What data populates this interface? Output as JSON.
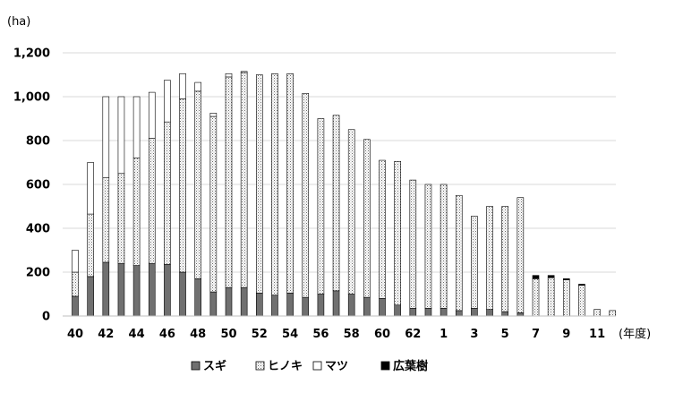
{
  "chart_data": {
    "type": "bar",
    "stacked": true,
    "y_unit": "(ha)",
    "x_unit": "(年度)",
    "ylim": [
      0,
      1200
    ],
    "y_ticks": [
      "0",
      "200",
      "400",
      "600",
      "800",
      "1,000",
      "1,200"
    ],
    "grid": "horizontal",
    "legend_position": "bottom",
    "categories": [
      "40",
      "41",
      "42",
      "43",
      "44",
      "45",
      "46",
      "47",
      "48",
      "49",
      "50",
      "51",
      "52",
      "53",
      "54",
      "55",
      "56",
      "57",
      "58",
      "59",
      "60",
      "61",
      "62",
      "63",
      "1",
      "2",
      "3",
      "4",
      "5",
      "6",
      "7",
      "8",
      "9",
      "10",
      "11",
      "12"
    ],
    "x_tick_labels": [
      "40",
      "42",
      "44",
      "46",
      "48",
      "50",
      "52",
      "54",
      "56",
      "58",
      "60",
      "62",
      "1",
      "3",
      "5",
      "7",
      "9",
      "11"
    ],
    "series": [
      {
        "name": "スギ",
        "color": "#707070",
        "pattern": "solid",
        "values": [
          90,
          180,
          245,
          240,
          230,
          240,
          235,
          200,
          170,
          110,
          130,
          130,
          105,
          95,
          105,
          85,
          100,
          115,
          100,
          85,
          80,
          50,
          35,
          35,
          35,
          25,
          35,
          30,
          20,
          15,
          0,
          0,
          0,
          0,
          0,
          0
        ]
      },
      {
        "name": "ヒノキ",
        "color": "#e6e6e6",
        "pattern": "dotted",
        "values": [
          110,
          285,
          385,
          410,
          490,
          570,
          650,
          790,
          855,
          800,
          960,
          980,
          995,
          1010,
          1000,
          930,
          800,
          800,
          750,
          720,
          630,
          655,
          585,
          565,
          565,
          525,
          420,
          470,
          480,
          525,
          170,
          175,
          165,
          140,
          30,
          25
        ]
      },
      {
        "name": "マツ",
        "color": "#ffffff",
        "pattern": "solid",
        "values": [
          100,
          235,
          370,
          350,
          280,
          210,
          190,
          115,
          40,
          15,
          15,
          5,
          0,
          0,
          0,
          0,
          0,
          0,
          0,
          0,
          0,
          0,
          0,
          0,
          0,
          0,
          0,
          0,
          0,
          0,
          0,
          0,
          0,
          0,
          0,
          0
        ]
      },
      {
        "name": "広葉樹",
        "color": "#000000",
        "pattern": "solid",
        "values": [
          0,
          0,
          0,
          0,
          0,
          0,
          0,
          0,
          0,
          0,
          0,
          0,
          0,
          0,
          0,
          0,
          0,
          0,
          0,
          0,
          0,
          0,
          0,
          0,
          0,
          0,
          0,
          0,
          0,
          0,
          15,
          10,
          5,
          5,
          0,
          0
        ]
      }
    ]
  }
}
